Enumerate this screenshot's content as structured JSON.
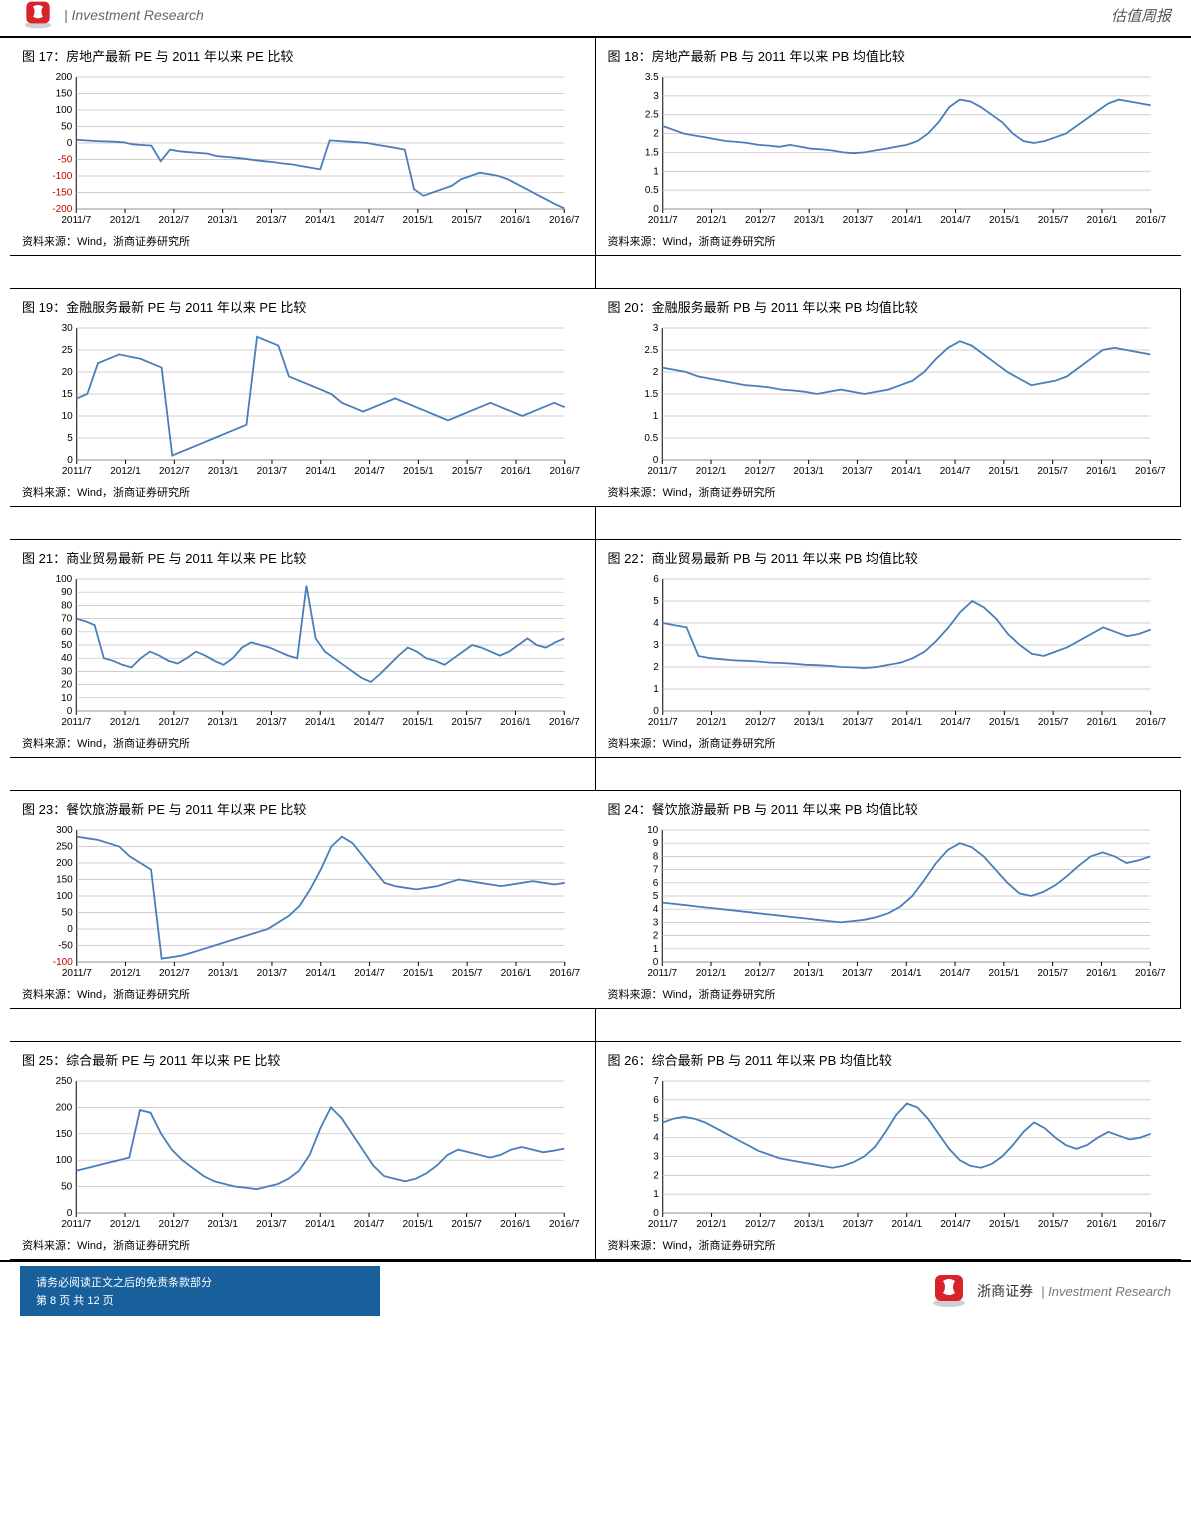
{
  "header": {
    "left_text": "| Investment Research",
    "right_text": "估值周报"
  },
  "footer": {
    "disclaimer": "请务必阅读正文之后的免责条款部分",
    "page_label": "第 8 页 共 12 页",
    "brand_cn": "浙商证券",
    "brand_en": "| Investment Research"
  },
  "source_label": "资料来源：Wind，浙商证券研究所",
  "x_ticks": [
    "2011/7",
    "2012/1",
    "2012/7",
    "2013/1",
    "2013/7",
    "2014/1",
    "2014/7",
    "2015/1",
    "2015/7",
    "2016/1",
    "2016/7"
  ],
  "rows": [
    {
      "left": {
        "title": "图 17：房地产最新 PE 与 2011 年以来 PE 比较",
        "type": "line",
        "y_ticks": [
          200,
          150,
          100,
          50,
          0,
          -50,
          -100,
          -150,
          -200
        ],
        "y_red_from_idx": 5,
        "ylim": [
          -200,
          200
        ],
        "values": [
          10,
          8,
          6,
          5,
          4,
          2,
          -4,
          -6,
          -8,
          -55,
          -20,
          -25,
          -28,
          -30,
          -32,
          -40,
          -42,
          -45,
          -48,
          -52,
          -55,
          -58,
          -62,
          -65,
          -70,
          -75,
          -80,
          8,
          6,
          4,
          2,
          0,
          -5,
          -10,
          -15,
          -20,
          -140,
          -160,
          -150,
          -140,
          -130,
          -110,
          -100,
          -90,
          -95,
          -100,
          -110,
          -125,
          -140,
          -155,
          -170,
          -185,
          -198
        ],
        "line_color": "#4a7ebb",
        "grid_color": "#bfbfbf"
      },
      "right": {
        "title": "图 18：房地产最新 PB 与 2011 年以来 PB 均值比较",
        "type": "line",
        "y_ticks": [
          3.5,
          3,
          2.5,
          2,
          1.5,
          1,
          0.5,
          0
        ],
        "ylim": [
          0,
          3.5
        ],
        "values": [
          2.2,
          2.1,
          2.0,
          1.95,
          1.9,
          1.85,
          1.8,
          1.78,
          1.75,
          1.7,
          1.68,
          1.65,
          1.7,
          1.65,
          1.6,
          1.58,
          1.55,
          1.5,
          1.48,
          1.5,
          1.55,
          1.6,
          1.65,
          1.7,
          1.8,
          2.0,
          2.3,
          2.7,
          2.9,
          2.85,
          2.7,
          2.5,
          2.3,
          2.0,
          1.8,
          1.75,
          1.8,
          1.9,
          2.0,
          2.2,
          2.4,
          2.6,
          2.8,
          2.9,
          2.85,
          2.8,
          2.75
        ],
        "line_color": "#4a7ebb",
        "grid_color": "#bfbfbf"
      }
    },
    {
      "left": {
        "title": "图 19：金融服务最新 PE 与 2011 年以来 PE 比较",
        "type": "line",
        "y_ticks": [
          30,
          25,
          20,
          15,
          10,
          5,
          0
        ],
        "ylim": [
          0,
          30
        ],
        "values": [
          14,
          15,
          22,
          23,
          24,
          23.5,
          23,
          22,
          21,
          1,
          2,
          3,
          4,
          5,
          6,
          7,
          8,
          28,
          27,
          26,
          19,
          18,
          17,
          16,
          15,
          13,
          12,
          11,
          12,
          13,
          14,
          13,
          12,
          11,
          10,
          9,
          10,
          11,
          12,
          13,
          12,
          11,
          10,
          11,
          12,
          13,
          12
        ],
        "line_color": "#4a7ebb",
        "grid_color": "#bfbfbf"
      },
      "right": {
        "title": "图 20：金融服务最新 PB 与 2011 年以来 PB 均值比较",
        "type": "line",
        "y_ticks": [
          3,
          2.5,
          2,
          1.5,
          1,
          0.5,
          0
        ],
        "ylim": [
          0,
          3
        ],
        "values": [
          2.1,
          2.05,
          2.0,
          1.9,
          1.85,
          1.8,
          1.75,
          1.7,
          1.68,
          1.65,
          1.6,
          1.58,
          1.55,
          1.5,
          1.55,
          1.6,
          1.55,
          1.5,
          1.55,
          1.6,
          1.7,
          1.8,
          2.0,
          2.3,
          2.55,
          2.7,
          2.6,
          2.4,
          2.2,
          2.0,
          1.85,
          1.7,
          1.75,
          1.8,
          1.9,
          2.1,
          2.3,
          2.5,
          2.55,
          2.5,
          2.45,
          2.4
        ],
        "line_color": "#4a7ebb",
        "grid_color": "#bfbfbf"
      }
    },
    {
      "left": {
        "title": "图 21：商业贸易最新 PE 与 2011 年以来 PE 比较",
        "type": "line",
        "y_ticks": [
          100,
          90,
          80,
          70,
          60,
          50,
          40,
          30,
          20,
          10,
          0
        ],
        "ylim": [
          0,
          100
        ],
        "values": [
          70,
          68,
          65,
          40,
          38,
          35,
          33,
          40,
          45,
          42,
          38,
          36,
          40,
          45,
          42,
          38,
          35,
          40,
          48,
          52,
          50,
          48,
          45,
          42,
          40,
          95,
          55,
          45,
          40,
          35,
          30,
          25,
          22,
          28,
          35,
          42,
          48,
          45,
          40,
          38,
          35,
          40,
          45,
          50,
          48,
          45,
          42,
          45,
          50,
          55,
          50,
          48,
          52,
          55
        ],
        "line_color": "#4a7ebb",
        "grid_color": "#bfbfbf"
      },
      "right": {
        "title": "图 22：商业贸易最新 PB 与 2011 年以来 PB 均值比较",
        "type": "line",
        "y_ticks": [
          6,
          5,
          4,
          3,
          2,
          1,
          0
        ],
        "ylim": [
          0,
          6
        ],
        "values": [
          4.0,
          3.9,
          3.8,
          2.5,
          2.4,
          2.35,
          2.3,
          2.28,
          2.25,
          2.2,
          2.18,
          2.15,
          2.1,
          2.08,
          2.05,
          2.0,
          1.98,
          1.95,
          2.0,
          2.1,
          2.2,
          2.4,
          2.7,
          3.2,
          3.8,
          4.5,
          5.0,
          4.7,
          4.2,
          3.5,
          3.0,
          2.6,
          2.5,
          2.7,
          2.9,
          3.2,
          3.5,
          3.8,
          3.6,
          3.4,
          3.5,
          3.7
        ],
        "line_color": "#4a7ebb",
        "grid_color": "#bfbfbf"
      }
    },
    {
      "left": {
        "title": "图 23：餐饮旅游最新 PE 与 2011 年以来 PE 比较",
        "type": "line",
        "y_ticks": [
          300,
          250,
          200,
          150,
          100,
          50,
          0,
          -50,
          -100
        ],
        "y_red_from_idx": 8,
        "ylim": [
          -100,
          300
        ],
        "values": [
          280,
          275,
          270,
          260,
          250,
          220,
          200,
          180,
          -90,
          -85,
          -80,
          -70,
          -60,
          -50,
          -40,
          -30,
          -20,
          -10,
          0,
          20,
          40,
          70,
          120,
          180,
          250,
          280,
          260,
          220,
          180,
          140,
          130,
          125,
          120,
          125,
          130,
          140,
          150,
          145,
          140,
          135,
          130,
          135,
          140,
          145,
          140,
          135,
          140
        ],
        "line_color": "#4a7ebb",
        "grid_color": "#bfbfbf"
      },
      "right": {
        "title": "图 24：餐饮旅游最新 PB 与 2011 年以来 PB 均值比较",
        "type": "line",
        "y_ticks": [
          10,
          9,
          8,
          7,
          6,
          5,
          4,
          3,
          2,
          1,
          0
        ],
        "ylim": [
          0,
          10
        ],
        "values": [
          4.5,
          4.4,
          4.3,
          4.2,
          4.1,
          4.0,
          3.9,
          3.8,
          3.7,
          3.6,
          3.5,
          3.4,
          3.3,
          3.2,
          3.1,
          3.0,
          3.1,
          3.2,
          3.4,
          3.7,
          4.2,
          5.0,
          6.2,
          7.5,
          8.5,
          9.0,
          8.7,
          8.0,
          7.0,
          6.0,
          5.2,
          5.0,
          5.3,
          5.8,
          6.5,
          7.3,
          8.0,
          8.3,
          8.0,
          7.5,
          7.7,
          8.0
        ],
        "line_color": "#4a7ebb",
        "grid_color": "#bfbfbf"
      }
    },
    {
      "left": {
        "title": "图 25：综合最新 PE 与 2011 年以来 PE 比较",
        "type": "line",
        "y_ticks": [
          250,
          200,
          150,
          100,
          50,
          0
        ],
        "ylim": [
          0,
          250
        ],
        "values": [
          80,
          85,
          90,
          95,
          100,
          105,
          195,
          190,
          150,
          120,
          100,
          85,
          70,
          60,
          55,
          50,
          48,
          45,
          50,
          55,
          65,
          80,
          110,
          160,
          200,
          180,
          150,
          120,
          90,
          70,
          65,
          60,
          65,
          75,
          90,
          110,
          120,
          115,
          110,
          105,
          110,
          120,
          125,
          120,
          115,
          118,
          122
        ],
        "line_color": "#4a7ebb",
        "grid_color": "#bfbfbf"
      },
      "right": {
        "title": "图 26：综合最新 PB 与 2011 年以来 PB 均值比较",
        "type": "line",
        "y_ticks": [
          7,
          6,
          5,
          4,
          3,
          2,
          1,
          0
        ],
        "ylim": [
          0,
          7
        ],
        "values": [
          4.8,
          5.0,
          5.1,
          5.0,
          4.8,
          4.5,
          4.2,
          3.9,
          3.6,
          3.3,
          3.1,
          2.9,
          2.8,
          2.7,
          2.6,
          2.5,
          2.4,
          2.5,
          2.7,
          3.0,
          3.5,
          4.3,
          5.2,
          5.8,
          5.6,
          5.0,
          4.2,
          3.4,
          2.8,
          2.5,
          2.4,
          2.6,
          3.0,
          3.6,
          4.3,
          4.8,
          4.5,
          4.0,
          3.6,
          3.4,
          3.6,
          4.0,
          4.3,
          4.1,
          3.9,
          4.0,
          4.2
        ],
        "line_color": "#4a7ebb",
        "grid_color": "#bfbfbf"
      }
    }
  ]
}
